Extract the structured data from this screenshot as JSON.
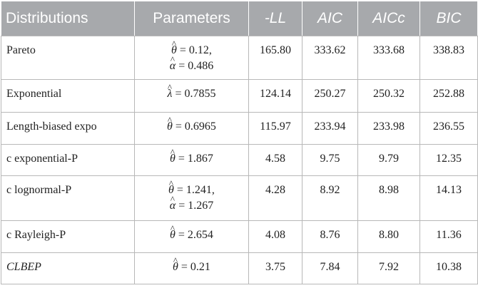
{
  "table": {
    "headers": [
      "Distributions",
      "Parameters",
      "-LL",
      "AIC",
      "AICc",
      "BIC"
    ],
    "rows": [
      {
        "name": "Pareto",
        "params": [
          {
            "sym": "θ",
            "val": " = 0.12,"
          },
          {
            "sym": "α",
            "val": " = 0.486"
          }
        ],
        "ll": "165.80",
        "aic": "333.62",
        "aicc": "333.68",
        "bic": "338.83"
      },
      {
        "name": "Exponential",
        "params": [
          {
            "sym": "λ",
            "val": " = 0.7855"
          }
        ],
        "ll": "124.14",
        "aic": "250.27",
        "aicc": "250.32",
        "bic": "252.88"
      },
      {
        "name": "Length-biased expo",
        "params": [
          {
            "sym": "θ",
            "val": " = 0.6965"
          }
        ],
        "ll": "115.97",
        "aic": "233.94",
        "aicc": "233.98",
        "bic": "236.55"
      },
      {
        "name": "c exponential-P",
        "params": [
          {
            "sym": "θ",
            "val": " = 1.867"
          }
        ],
        "ll": "4.58",
        "aic": "9.75",
        "aicc": "9.79",
        "bic": "12.35"
      },
      {
        "name": "c lognormal-P",
        "params": [
          {
            "sym": "θ",
            "val": " = 1.241,"
          },
          {
            "sym": "α",
            "val": " = 1.267"
          }
        ],
        "ll": "4.28",
        "aic": "8.92",
        "aicc": "8.98",
        "bic": "14.13"
      },
      {
        "name": "c Rayleigh-P",
        "params": [
          {
            "sym": "θ",
            "val": " = 2.654"
          }
        ],
        "ll": "4.08",
        "aic": "8.76",
        "aicc": "8.80",
        "bic": "11.36"
      },
      {
        "name": "CLBEP",
        "params": [
          {
            "sym": "θ",
            "val": " = 0.21"
          }
        ],
        "ll": "3.75",
        "aic": "7.84",
        "aicc": "7.92",
        "bic": "10.38"
      }
    ]
  }
}
